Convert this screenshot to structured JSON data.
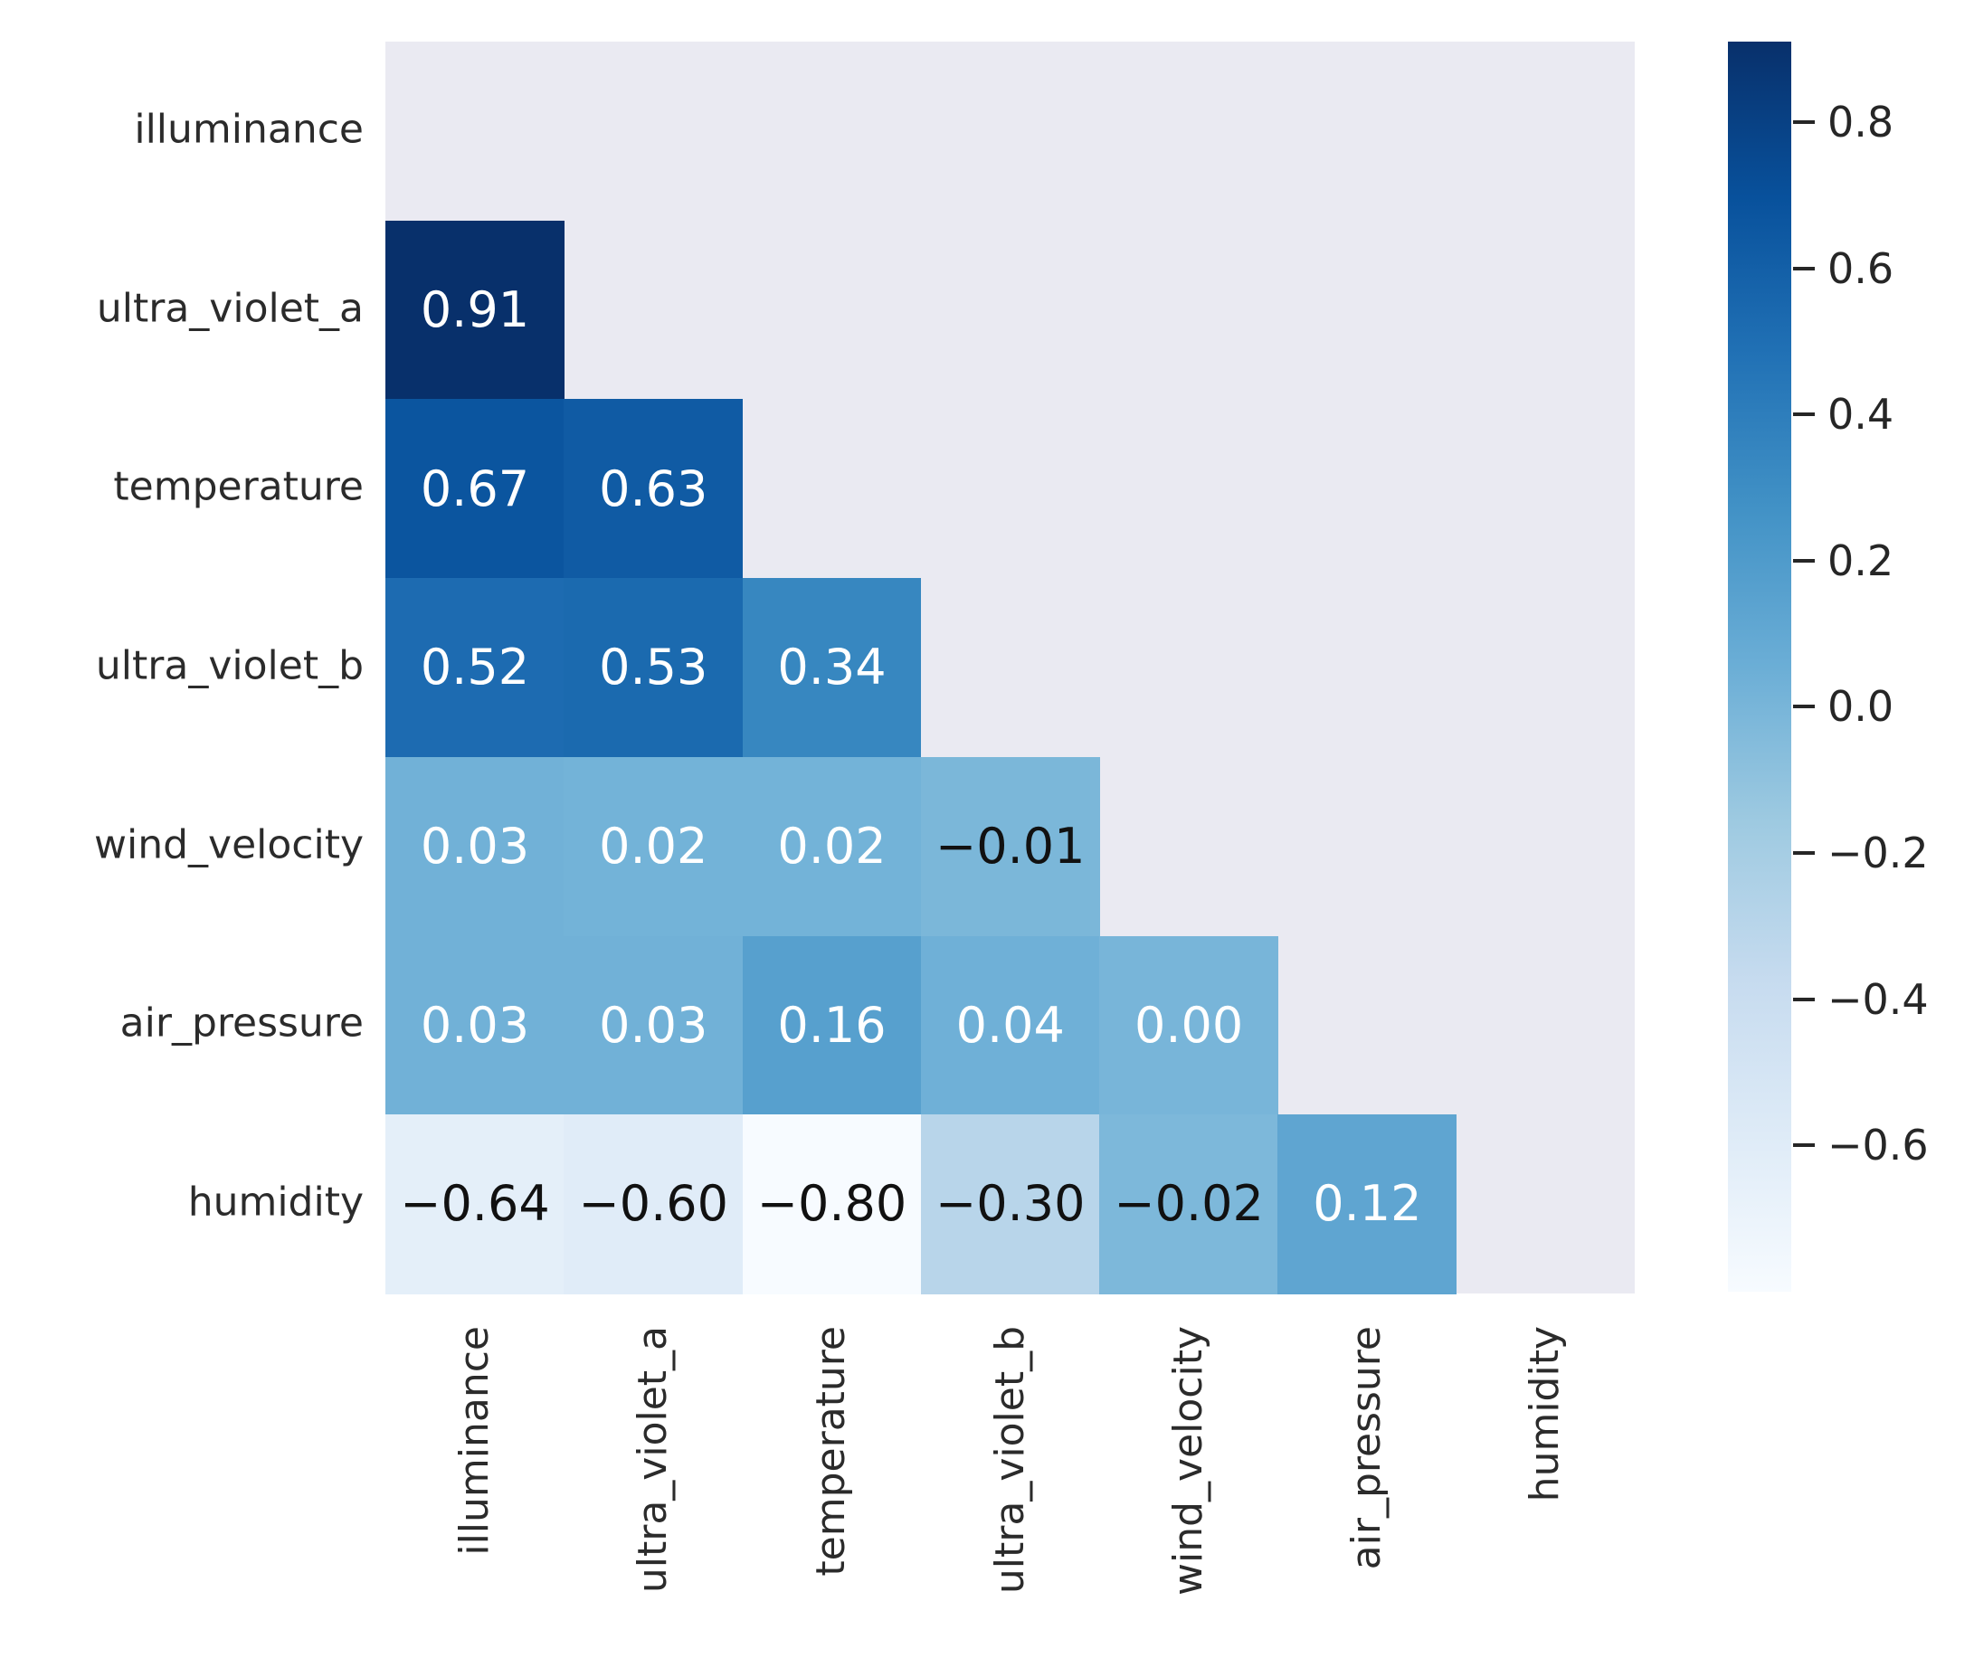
{
  "chart_data": {
    "type": "heatmap",
    "title": "",
    "variables": [
      "illuminance",
      "ultra_violet_a",
      "temperature",
      "ultra_violet_b",
      "wind_velocity",
      "air_pressure",
      "humidity"
    ],
    "y_tick_labels": [
      "illuminance",
      "ultra_violet_a",
      "temperature",
      "ultra_violet_b",
      "wind_velocity",
      "air_pressure",
      "humidity"
    ],
    "x_tick_labels": [
      "illuminance",
      "ultra_violet_a",
      "temperature",
      "ultra_violet_b",
      "wind_velocity",
      "air_pressure",
      "humidity"
    ],
    "mask": "upper-triangle-and-diagonal-hidden",
    "matrix": [
      [
        null,
        null,
        null,
        null,
        null,
        null,
        null
      ],
      [
        0.91,
        null,
        null,
        null,
        null,
        null,
        null
      ],
      [
        0.67,
        0.63,
        null,
        null,
        null,
        null,
        null
      ],
      [
        0.52,
        0.53,
        0.34,
        null,
        null,
        null,
        null
      ],
      [
        0.03,
        0.02,
        0.02,
        -0.01,
        null,
        null,
        null
      ],
      [
        0.03,
        0.03,
        0.16,
        0.04,
        0.0,
        null,
        null
      ],
      [
        -0.64,
        -0.6,
        -0.8,
        -0.3,
        -0.02,
        0.12,
        null
      ]
    ],
    "cell_labels": [
      [],
      [
        "0.91"
      ],
      [
        "0.67",
        "0.63"
      ],
      [
        "0.52",
        "0.53",
        "0.34"
      ],
      [
        "0.03",
        "0.02",
        "0.02",
        "−0.01"
      ],
      [
        "0.03",
        "0.03",
        "0.16",
        "0.04",
        "0.00"
      ],
      [
        "−0.64",
        "−0.60",
        "−0.80",
        "−0.30",
        "−0.02",
        "0.12"
      ]
    ],
    "vmin": -0.8,
    "vmax": 0.91,
    "colormap": {
      "name": "Blues",
      "stops": [
        "#f7fbff",
        "#deebf7",
        "#c6dbef",
        "#9ecae1",
        "#6baed6",
        "#4292c6",
        "#2171b5",
        "#08519c",
        "#08306b"
      ]
    },
    "colorbar": {
      "position": "right",
      "tick_values": [
        0.8,
        0.6,
        0.4,
        0.2,
        0.0,
        -0.2,
        -0.4,
        -0.6
      ],
      "tick_labels": [
        "0.8",
        "0.6",
        "0.4",
        "0.2",
        "0.0",
        "−0.2",
        "−0.4",
        "−0.6"
      ]
    },
    "colors": {
      "masked_background": "#eaeaf2",
      "figure_background": "#ffffff",
      "annotation_light": "#ffffff",
      "annotation_dark": "#111111",
      "axis_tick_label": "#2b2b2b",
      "colorbar_tick": "#262626"
    },
    "annotation_light_threshold_t": 0.465,
    "grid": false,
    "legend": false
  }
}
